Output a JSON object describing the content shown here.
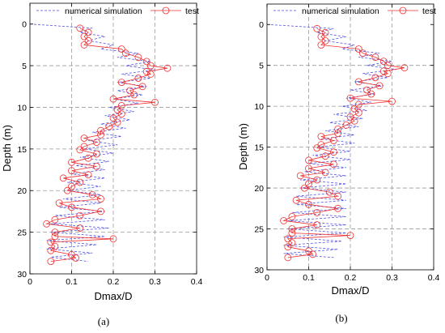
{
  "chart_data": [
    {
      "type": "line",
      "panel_label": "(a)",
      "xlabel": "Dmax/D",
      "ylabel": "Depth (m)",
      "xlim": [
        0,
        0.4
      ],
      "ylim": [
        -2.5,
        30
      ],
      "y_reversed": true,
      "xticks": [
        0,
        0.1,
        0.2,
        0.3,
        0.4
      ],
      "xtick_labels": [
        "0",
        "0.1",
        "0.2",
        "0.3",
        "0.4"
      ],
      "yticks": [
        0,
        5,
        10,
        15,
        20,
        25,
        30
      ],
      "ytick_labels": [
        "0",
        "5",
        "10",
        "15",
        "20",
        "25",
        "30"
      ],
      "grid": true,
      "legend": "top",
      "series": [
        {
          "name": "numerical simulation",
          "line_style": "dashed",
          "marker": "none",
          "color": "#4b4be0",
          "x": [
            0.0,
            0.15,
            0.12,
            0.18,
            0.14,
            0.2,
            0.17,
            0.26,
            0.21,
            0.29,
            0.23,
            0.3,
            0.22,
            0.29,
            0.21,
            0.28,
            0.21,
            0.27,
            0.2,
            0.26,
            0.19,
            0.25,
            0.18,
            0.24,
            0.17,
            0.23,
            0.15,
            0.22,
            0.14,
            0.21,
            0.13,
            0.2,
            0.12,
            0.19,
            0.11,
            0.18,
            0.1,
            0.18,
            0.09,
            0.17,
            0.09,
            0.17,
            0.08,
            0.17,
            0.07,
            0.18,
            0.06,
            0.18,
            0.05,
            0.19,
            0.05,
            0.18,
            0.04,
            0.16,
            0.04,
            0.15,
            0.05,
            0.14
          ],
          "y": [
            0,
            0.5,
            1,
            1.5,
            2,
            2.5,
            3,
            3.5,
            4,
            4.5,
            5,
            5.5,
            6,
            6.5,
            7,
            7.5,
            8,
            8.5,
            9,
            9.5,
            10,
            10.5,
            11,
            11.5,
            12,
            12.5,
            13,
            13.5,
            14,
            14.5,
            15,
            15.5,
            16,
            16.5,
            17,
            17.5,
            18,
            18.5,
            19,
            19.5,
            20,
            20.5,
            21,
            21.5,
            22,
            22.5,
            23,
            23.5,
            24,
            24.5,
            25,
            25.5,
            26,
            26.5,
            27,
            27.5,
            28,
            28.5
          ]
        },
        {
          "name": "test",
          "line_style": "solid",
          "marker": "circle",
          "color": "#f03030",
          "x": [
            0.12,
            0.14,
            0.13,
            0.14,
            0.13,
            0.22,
            0.23,
            0.26,
            0.28,
            0.29,
            0.33,
            0.28,
            0.29,
            0.26,
            0.22,
            0.27,
            0.24,
            0.25,
            0.2,
            0.3,
            0.22,
            0.21,
            0.22,
            0.2,
            0.21,
            0.19,
            0.17,
            0.17,
            0.13,
            0.16,
            0.13,
            0.12,
            0.16,
            0.14,
            0.1,
            0.16,
            0.1,
            0.14,
            0.08,
            0.12,
            0.1,
            0.09,
            0.15,
            0.17,
            0.07,
            0.1,
            0.17,
            0.12,
            0.06,
            0.04,
            0.12,
            0.06,
            0.06,
            0.2,
            0.05,
            0.06,
            0.05,
            0.1,
            0.11,
            0.05
          ],
          "y": [
            0.5,
            1.0,
            1.5,
            2.0,
            2.5,
            3.0,
            3.5,
            4.0,
            4.5,
            5.0,
            5.3,
            5.7,
            6.0,
            6.5,
            7.0,
            7.5,
            8.0,
            8.5,
            9.0,
            9.4,
            9.8,
            10.3,
            10.8,
            11.3,
            11.8,
            12.3,
            12.8,
            13.3,
            13.7,
            14.2,
            14.7,
            15.1,
            15.6,
            16.1,
            16.6,
            17.1,
            17.6,
            18.1,
            18.5,
            19.0,
            19.5,
            20.0,
            20.5,
            21.0,
            21.5,
            22.0,
            22.5,
            23.0,
            23.5,
            24.0,
            24.5,
            25.0,
            25.5,
            25.8,
            26.2,
            26.7,
            27.2,
            27.7,
            28.1,
            28.5
          ]
        }
      ]
    },
    {
      "type": "line",
      "panel_label": "(b)",
      "xlabel": "Dmax/D",
      "ylabel": "Depth (m)",
      "xlim": [
        0,
        0.4
      ],
      "ylim": [
        -2.5,
        30
      ],
      "y_reversed": true,
      "xticks": [
        0,
        0.1,
        0.2,
        0.3,
        0.4
      ],
      "xtick_labels": [
        "0",
        "0.1",
        "0.2",
        "0.3",
        "0.4"
      ],
      "yticks": [
        0,
        5,
        10,
        15,
        20,
        25,
        30
      ],
      "ytick_labels": [
        "0",
        "5",
        "10",
        "15",
        "20",
        "25",
        "30"
      ],
      "grid": true,
      "legend": "top",
      "series": [
        {
          "name": "numerical simulation",
          "line_style": "dashed",
          "marker": "none",
          "color": "#4b4be0",
          "x": [
            0.0,
            0.16,
            0.12,
            0.19,
            0.14,
            0.21,
            0.18,
            0.27,
            0.22,
            0.3,
            0.24,
            0.31,
            0.23,
            0.29,
            0.21,
            0.28,
            0.2,
            0.26,
            0.19,
            0.25,
            0.18,
            0.24,
            0.16,
            0.23,
            0.15,
            0.22,
            0.14,
            0.21,
            0.13,
            0.21,
            0.12,
            0.2,
            0.11,
            0.2,
            0.1,
            0.19,
            0.09,
            0.19,
            0.08,
            0.19,
            0.08,
            0.19,
            0.07,
            0.19,
            0.07,
            0.19,
            0.06,
            0.19,
            0.05,
            0.19,
            0.05,
            0.19,
            0.04,
            0.18,
            0.04,
            0.17,
            0.04,
            0.16
          ],
          "y": [
            0,
            0.5,
            1,
            1.5,
            2,
            2.5,
            3,
            3.5,
            4,
            4.5,
            5,
            5.5,
            6,
            6.5,
            7,
            7.5,
            8,
            8.5,
            9,
            9.5,
            10,
            10.5,
            11,
            11.5,
            12,
            12.5,
            13,
            13.5,
            14,
            14.5,
            15,
            15.5,
            16,
            16.5,
            17,
            17.5,
            18,
            18.5,
            19,
            19.5,
            20,
            20.5,
            21,
            21.5,
            22,
            22.5,
            23,
            23.5,
            24,
            24.5,
            25,
            25.5,
            26,
            26.5,
            27,
            27.5,
            28,
            28.5
          ]
        },
        {
          "name": "test",
          "line_style": "solid",
          "marker": "circle",
          "color": "#f03030",
          "x": [
            0.12,
            0.14,
            0.13,
            0.14,
            0.13,
            0.22,
            0.23,
            0.26,
            0.28,
            0.29,
            0.33,
            0.28,
            0.29,
            0.26,
            0.22,
            0.27,
            0.24,
            0.25,
            0.2,
            0.3,
            0.22,
            0.21,
            0.22,
            0.2,
            0.21,
            0.19,
            0.17,
            0.17,
            0.13,
            0.16,
            0.13,
            0.12,
            0.16,
            0.14,
            0.1,
            0.16,
            0.1,
            0.14,
            0.08,
            0.12,
            0.1,
            0.09,
            0.15,
            0.17,
            0.07,
            0.1,
            0.17,
            0.12,
            0.06,
            0.04,
            0.12,
            0.06,
            0.06,
            0.2,
            0.05,
            0.06,
            0.05,
            0.1,
            0.11,
            0.05
          ],
          "y": [
            0.5,
            1.0,
            1.5,
            2.0,
            2.5,
            3.0,
            3.5,
            4.0,
            4.5,
            5.0,
            5.3,
            5.7,
            6.0,
            6.5,
            7.0,
            7.5,
            8.0,
            8.5,
            9.0,
            9.4,
            9.8,
            10.3,
            10.8,
            11.3,
            11.8,
            12.3,
            12.8,
            13.3,
            13.7,
            14.2,
            14.7,
            15.1,
            15.6,
            16.1,
            16.6,
            17.1,
            17.6,
            18.1,
            18.5,
            19.0,
            19.5,
            20.0,
            20.5,
            21.0,
            21.5,
            22.0,
            22.5,
            23.0,
            23.5,
            24.0,
            24.5,
            25.0,
            25.5,
            25.8,
            26.2,
            26.7,
            27.2,
            27.7,
            28.1,
            28.5
          ]
        }
      ]
    }
  ]
}
